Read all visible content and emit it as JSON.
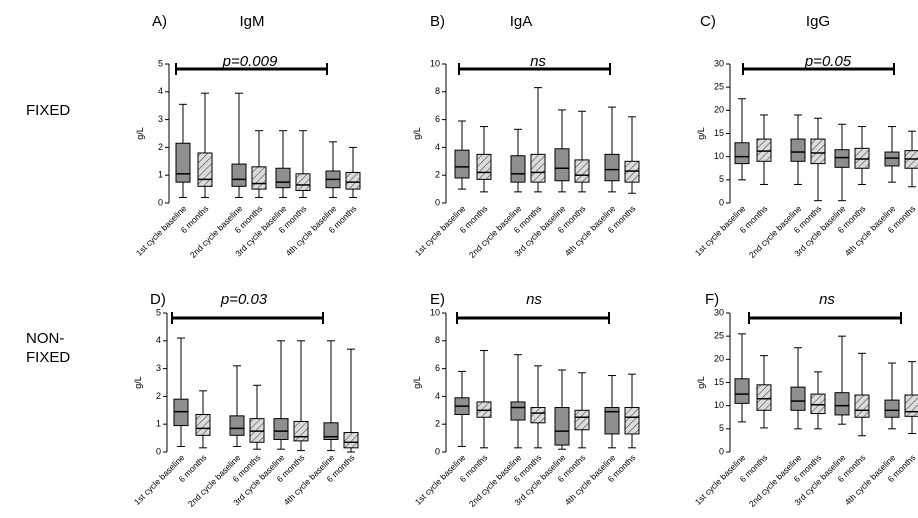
{
  "rows": [
    {
      "label_lines": [
        "FIXED"
      ]
    },
    {
      "label_lines": [
        "NON-",
        "FIXED"
      ]
    }
  ],
  "chart_data": [
    {
      "type": "box",
      "panel": "A)",
      "title": "IgM",
      "row": "FIXED",
      "annotation": "p=0.009",
      "ylabel": "g/L",
      "ylim": [
        0,
        5
      ],
      "yticks": [
        0,
        1,
        2,
        3,
        4,
        5
      ],
      "categories": [
        "1st cycle baseline",
        "6 months",
        "2nd cycle baseline",
        "6 months",
        "3rd cycle baseline",
        "6 months",
        "4th cycle baseline",
        "6 months"
      ],
      "boxes": [
        {
          "min": 0.2,
          "q1": 0.75,
          "median": 1.05,
          "q3": 2.15,
          "max": 3.55
        },
        {
          "min": 0.2,
          "q1": 0.6,
          "median": 0.85,
          "q3": 1.8,
          "max": 3.95
        },
        {
          "min": 0.2,
          "q1": 0.6,
          "median": 0.85,
          "q3": 1.4,
          "max": 3.95
        },
        {
          "min": 0.2,
          "q1": 0.5,
          "median": 0.7,
          "q3": 1.3,
          "max": 2.6
        },
        {
          "min": 0.2,
          "q1": 0.55,
          "median": 0.75,
          "q3": 1.25,
          "max": 2.6
        },
        {
          "min": 0.2,
          "q1": 0.45,
          "median": 0.65,
          "q3": 1.05,
          "max": 2.6
        },
        {
          "min": 0.2,
          "q1": 0.55,
          "median": 0.85,
          "q3": 1.15,
          "max": 2.2
        },
        {
          "min": 0.2,
          "q1": 0.5,
          "median": 0.75,
          "q3": 1.1,
          "max": 2.0
        }
      ]
    },
    {
      "type": "box",
      "panel": "B)",
      "title": "IgA",
      "row": "FIXED",
      "annotation": "ns",
      "ylabel": "g/L",
      "ylim": [
        0,
        10
      ],
      "yticks": [
        0,
        2,
        4,
        6,
        8,
        10
      ],
      "categories": [
        "1st cycle baseline",
        "6 months",
        "2nd cycle baseline",
        "6 months",
        "3rd cycle baseline",
        "6 months",
        "4th cycle baseline",
        "6 months"
      ],
      "boxes": [
        {
          "min": 1.0,
          "q1": 1.8,
          "median": 2.6,
          "q3": 3.8,
          "max": 5.9
        },
        {
          "min": 0.8,
          "q1": 1.7,
          "median": 2.2,
          "q3": 3.5,
          "max": 5.5
        },
        {
          "min": 0.8,
          "q1": 1.5,
          "median": 2.1,
          "q3": 3.4,
          "max": 5.3
        },
        {
          "min": 0.8,
          "q1": 1.5,
          "median": 2.2,
          "q3": 3.5,
          "max": 8.3
        },
        {
          "min": 0.8,
          "q1": 1.6,
          "median": 2.5,
          "q3": 3.9,
          "max": 6.7
        },
        {
          "min": 0.8,
          "q1": 1.5,
          "median": 2.0,
          "q3": 3.1,
          "max": 6.6
        },
        {
          "min": 0.8,
          "q1": 1.6,
          "median": 2.4,
          "q3": 3.5,
          "max": 6.9
        },
        {
          "min": 0.7,
          "q1": 1.5,
          "median": 2.3,
          "q3": 3.0,
          "max": 6.2
        }
      ]
    },
    {
      "type": "box",
      "panel": "C)",
      "title": "IgG",
      "row": "FIXED",
      "annotation": "p=0.05",
      "ylabel": "g/L",
      "ylim": [
        0,
        30
      ],
      "yticks": [
        0,
        5,
        10,
        15,
        20,
        25,
        30
      ],
      "categories": [
        "1st cycle baseline",
        "6 months",
        "2nd cycle baseline",
        "6 months",
        "3rd cycle baseline",
        "6 months",
        "4th cycle baseline",
        "6 months"
      ],
      "boxes": [
        {
          "min": 5.0,
          "q1": 8.5,
          "median": 10.0,
          "q3": 13.0,
          "max": 22.5
        },
        {
          "min": 4.0,
          "q1": 9.0,
          "median": 11.2,
          "q3": 13.8,
          "max": 19.0
        },
        {
          "min": 4.0,
          "q1": 9.0,
          "median": 11.0,
          "q3": 13.8,
          "max": 19.0
        },
        {
          "min": 0.5,
          "q1": 8.5,
          "median": 10.8,
          "q3": 13.8,
          "max": 18.3
        },
        {
          "min": 0.5,
          "q1": 7.7,
          "median": 9.8,
          "q3": 11.5,
          "max": 17.0
        },
        {
          "min": 4.0,
          "q1": 7.5,
          "median": 9.5,
          "q3": 11.8,
          "max": 16.5
        },
        {
          "min": 4.5,
          "q1": 8.0,
          "median": 9.7,
          "q3": 11.0,
          "max": 16.5
        },
        {
          "min": 3.5,
          "q1": 7.5,
          "median": 9.5,
          "q3": 11.3,
          "max": 15.5
        }
      ]
    },
    {
      "type": "box",
      "panel": "D)",
      "title": "",
      "row": "NON-FIXED",
      "annotation": "p=0.03",
      "ylabel": "g/L",
      "ylim": [
        0,
        5
      ],
      "yticks": [
        0,
        1,
        2,
        3,
        4,
        5
      ],
      "categories": [
        "1st cycle baseline",
        "6 months",
        "2nd cycle baseline",
        "6 months",
        "3rd cycle baseline",
        "6 months",
        "4th cycle baseline",
        "6 months"
      ],
      "boxes": [
        {
          "min": 0.2,
          "q1": 0.95,
          "median": 1.45,
          "q3": 1.9,
          "max": 4.1
        },
        {
          "min": 0.15,
          "q1": 0.6,
          "median": 0.85,
          "q3": 1.35,
          "max": 2.2
        },
        {
          "min": 0.2,
          "q1": 0.6,
          "median": 0.85,
          "q3": 1.3,
          "max": 3.1
        },
        {
          "min": 0.1,
          "q1": 0.35,
          "median": 0.75,
          "q3": 1.2,
          "max": 2.4
        },
        {
          "min": 0.1,
          "q1": 0.45,
          "median": 0.75,
          "q3": 1.2,
          "max": 4.0
        },
        {
          "min": 0.05,
          "q1": 0.4,
          "median": 0.55,
          "q3": 1.1,
          "max": 4.0
        },
        {
          "min": 0.05,
          "q1": 0.45,
          "median": 0.55,
          "q3": 1.05,
          "max": 4.0
        },
        {
          "min": 0.0,
          "q1": 0.15,
          "median": 0.35,
          "q3": 0.7,
          "max": 3.7
        }
      ]
    },
    {
      "type": "box",
      "panel": "E)",
      "title": "",
      "row": "NON-FIXED",
      "annotation": "ns",
      "ylabel": "g/L",
      "ylim": [
        0,
        10
      ],
      "yticks": [
        0,
        2,
        4,
        6,
        8,
        10
      ],
      "categories": [
        "1st cycle baseline",
        "6 months",
        "2nd cycle baseline",
        "6 months",
        "3rd cycle baseline",
        "6 months",
        "4th cycle baseline",
        "6 months"
      ],
      "boxes": [
        {
          "min": 0.4,
          "q1": 2.7,
          "median": 3.3,
          "q3": 3.9,
          "max": 5.8
        },
        {
          "min": 0.3,
          "q1": 2.5,
          "median": 3.0,
          "q3": 3.6,
          "max": 7.3
        },
        {
          "min": 0.3,
          "q1": 2.3,
          "median": 3.2,
          "q3": 3.6,
          "max": 7.0
        },
        {
          "min": 0.3,
          "q1": 2.1,
          "median": 2.8,
          "q3": 3.2,
          "max": 6.2
        },
        {
          "min": 0.2,
          "q1": 0.5,
          "median": 1.5,
          "q3": 3.2,
          "max": 5.9
        },
        {
          "min": 0.3,
          "q1": 1.6,
          "median": 2.5,
          "q3": 3.0,
          "max": 5.7
        },
        {
          "min": 0.3,
          "q1": 1.3,
          "median": 2.9,
          "q3": 3.2,
          "max": 5.5
        },
        {
          "min": 0.3,
          "q1": 1.3,
          "median": 2.5,
          "q3": 3.2,
          "max": 5.6
        }
      ]
    },
    {
      "type": "box",
      "panel": "F)",
      "title": "",
      "row": "NON-FIXED",
      "annotation": "ns",
      "ylabel": "g/L",
      "ylim": [
        0,
        30
      ],
      "yticks": [
        0,
        5,
        10,
        15,
        20,
        25,
        30
      ],
      "categories": [
        "1st cycle baseline",
        "6 months",
        "2nd cycle baseline",
        "6 months",
        "3rd cycle baseline",
        "6 months",
        "4th cycle baseline",
        "6 months"
      ],
      "boxes": [
        {
          "min": 6.5,
          "q1": 10.5,
          "median": 12.5,
          "q3": 15.8,
          "max": 25.5
        },
        {
          "min": 5.2,
          "q1": 9.0,
          "median": 11.5,
          "q3": 14.5,
          "max": 20.8
        },
        {
          "min": 5.0,
          "q1": 9.0,
          "median": 11.0,
          "q3": 14.0,
          "max": 22.5
        },
        {
          "min": 5.0,
          "q1": 8.3,
          "median": 10.2,
          "q3": 12.5,
          "max": 17.3
        },
        {
          "min": 6.0,
          "q1": 8.0,
          "median": 10.0,
          "q3": 12.8,
          "max": 25.0
        },
        {
          "min": 3.5,
          "q1": 7.5,
          "median": 9.0,
          "q3": 12.3,
          "max": 21.3
        },
        {
          "min": 5.0,
          "q1": 7.5,
          "median": 9.0,
          "q3": 11.2,
          "max": 19.2
        },
        {
          "min": 4.0,
          "q1": 7.7,
          "median": 8.7,
          "q3": 12.3,
          "max": 19.5
        }
      ]
    }
  ]
}
